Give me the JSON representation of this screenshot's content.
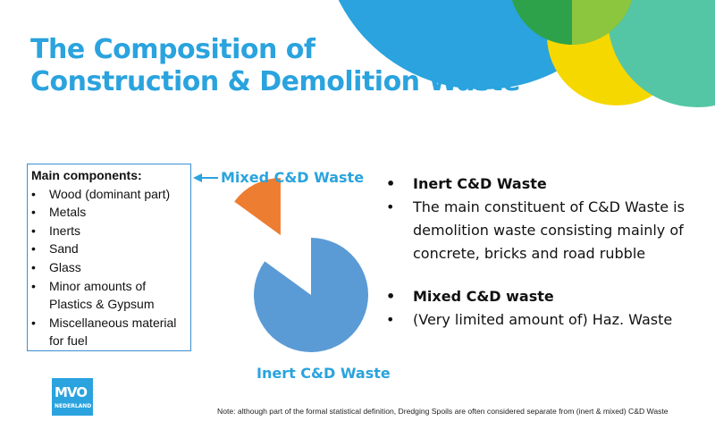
{
  "title": {
    "line1": "The Composition of",
    "line2": "Construction & Demolition Waste"
  },
  "components": {
    "heading": "Main components:",
    "items": [
      "Wood (dominant part)",
      "Metals",
      "Inerts",
      "Sand",
      "Glass",
      "Minor amounts of Plastics & Gypsum",
      "Miscellaneous material for fuel"
    ]
  },
  "chart_data": {
    "type": "pie",
    "series": [
      {
        "name": "Mixed C&D Waste",
        "value": 15,
        "color": "#ed7d31",
        "exploded": true
      },
      {
        "name": "Inert C&D Waste",
        "value": 85,
        "color": "#5b9bd5"
      }
    ]
  },
  "bullets": [
    {
      "text": "Inert C&D Waste",
      "bold": true
    },
    {
      "text": "The main constituent of C&D Waste is demolition waste consisting mainly of concrete, bricks and road rubble",
      "bold": false
    },
    {
      "text": "Mixed C&D waste",
      "bold": true
    },
    {
      "text": "(Very limited amount of) Haz. Waste",
      "bold": false
    }
  ],
  "logo": {
    "main": "MVO",
    "sub": "NEDERLAND"
  },
  "note": "Note: although part of the formal statistical definition, Dredging Spoils are often considered separate from (inert & mixed) C&D Waste",
  "colors": {
    "accent": "#2aa3de",
    "pie_inert": "#5b9bd5",
    "pie_mixed": "#ed7d31"
  }
}
